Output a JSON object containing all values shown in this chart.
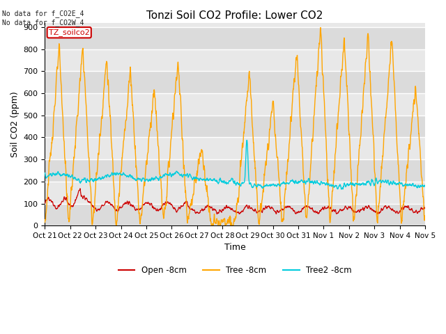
{
  "title": "Tonzi Soil CO2 Profile: Lower CO2",
  "xlabel": "Time",
  "ylabel": "Soil CO2 (ppm)",
  "ylim": [
    0,
    920
  ],
  "yticks": [
    0,
    100,
    200,
    300,
    400,
    500,
    600,
    700,
    800,
    900
  ],
  "annotation_top_left": "No data for f_CO2E_4\nNo data for f_CO2W_4",
  "legend_label": "TZ_soilco2",
  "series_labels": [
    "Open -8cm",
    "Tree -8cm",
    "Tree2 -8cm"
  ],
  "series_colors": [
    "#cc0000",
    "#ffa500",
    "#00ccdd"
  ],
  "background_color": "#ffffff",
  "plot_bg_color": "#e8e8e8",
  "x_tick_labels": [
    "Oct 21",
    "Oct 22",
    "Oct 23",
    "Oct 24",
    "Oct 25",
    "Oct 26",
    "Oct 27",
    "Oct 28",
    "Oct 29",
    "Oct 30",
    "Oct 31",
    "Nov 1",
    "Nov 2",
    "Nov 3",
    "Nov 4",
    "Nov 5"
  ],
  "n_points": 1500,
  "seed": 123,
  "figsize": [
    6.4,
    4.8
  ],
  "dpi": 100
}
